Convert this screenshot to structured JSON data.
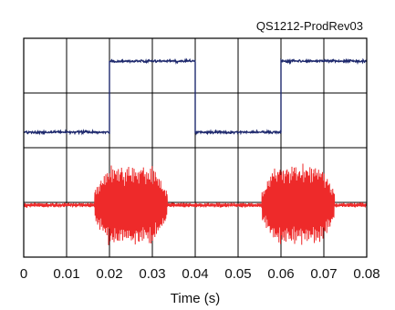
{
  "chart_data": {
    "type": "line",
    "title": "",
    "annotation": "QS1212-ProdRev03",
    "xlabel": "Time (s)",
    "ylabel": "",
    "xlim": [
      0,
      0.08
    ],
    "xticks": [
      "0",
      "0.01",
      "0.02",
      "0.03",
      "0.04",
      "0.05",
      "0.06",
      "0.07",
      "0.08"
    ],
    "yticks": [],
    "grid": true,
    "legend": "none",
    "series": [
      {
        "color": "#1f2a6e",
        "style": "digital square wave (upper trace)",
        "transitions_x": [
          0.02,
          0.04,
          0.06
        ],
        "segments": [
          {
            "x": [
              0.0,
              0.02
            ],
            "level": "low"
          },
          {
            "x": [
              0.02,
              0.04
            ],
            "level": "high"
          },
          {
            "x": [
              0.04,
              0.06
            ],
            "level": "low"
          },
          {
            "x": [
              0.06,
              0.08
            ],
            "level": "high"
          }
        ]
      },
      {
        "color": "#ee2a2a",
        "style": "oscillating signal with noise floor (lower trace)",
        "bursts": [
          {
            "x": [
              0.0165,
              0.0335
            ]
          },
          {
            "x": [
              0.0555,
              0.0725
            ]
          }
        ]
      }
    ]
  }
}
